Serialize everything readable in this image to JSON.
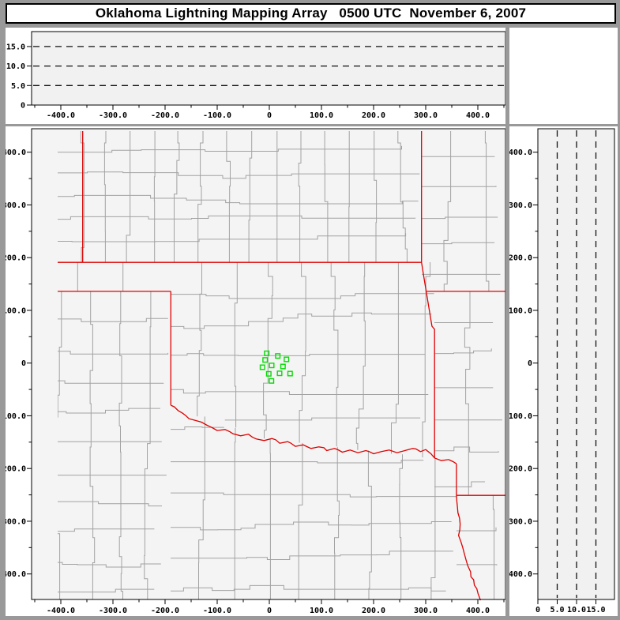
{
  "title_bar": {
    "text": "Oklahoma Lightning Mapping Array   0500 UTC  November 6, 2007"
  },
  "colors": {
    "frame_bg": "#999999",
    "panel_bg": "#ffffff",
    "plot_bg": "#f1f1f1",
    "map_bg": "#f4f4f4",
    "county_line": "#a2a2a2",
    "state_line": "#dd0000",
    "station_marker": "#00dd00",
    "axis": "#000000"
  },
  "chart_data": {
    "type": "scatter",
    "title": "Oklahoma Lightning Mapping Array",
    "timestamp": "0500 UTC  November 6, 2007",
    "layout": "three-panel lightning mapping display: altitude vs east-west (top), plan-view map (center), altitude vs north-south (right); distances in km from array center; no lightning source points plotted at this time",
    "panels": {
      "top_alt_vs_ew": {
        "x_range_km": [
          -456,
          453
        ],
        "alt_range_km": [
          0,
          18.8
        ],
        "alt_gridlines_km": [
          5,
          10,
          15
        ],
        "points": []
      },
      "map": {
        "x_range_km": [
          -456,
          453
        ],
        "y_range_km": [
          -448,
          445
        ],
        "points": []
      },
      "right_alt_vs_ns": {
        "alt_range_km": [
          0,
          19.8
        ],
        "y_range_km": [
          -448,
          445
        ],
        "alt_gridlines_km": [
          5,
          10,
          15
        ],
        "points": []
      }
    },
    "stations_km": [
      [
        -5.0,
        18.6
      ],
      [
        16.2,
        13.5
      ],
      [
        32.9,
        7.0
      ],
      [
        -8.0,
        6.0
      ],
      [
        4.5,
        -4.5
      ],
      [
        -13.2,
        -7.9
      ],
      [
        26.2,
        -6.4
      ],
      [
        -1.1,
        -20.4
      ],
      [
        19.7,
        -19.5
      ],
      [
        39.8,
        -19.9
      ],
      [
        4.1,
        -33.9
      ]
    ],
    "axes": {
      "km_ticks": [
        {
          "v": -400,
          "label": "-400.0"
        },
        {
          "v": -300,
          "label": "-300.0"
        },
        {
          "v": -200,
          "label": "-200.0"
        },
        {
          "v": -100,
          "label": "-100.0"
        },
        {
          "v": 0,
          "label": "0"
        },
        {
          "v": 100,
          "label": "100.0"
        },
        {
          "v": 200,
          "label": "200.0"
        },
        {
          "v": 300,
          "label": "300.0"
        },
        {
          "v": 400,
          "label": "400.0"
        }
      ],
      "km_minor_step": 50,
      "alt_ticks": [
        {
          "v": 0,
          "label": "0"
        },
        {
          "v": 5,
          "label": "5.0"
        },
        {
          "v": 10,
          "label": "10.0"
        },
        {
          "v": 15,
          "label": "15.0"
        }
      ]
    },
    "state_borders_km": {
      "kansas_south_37N": [
        [
          -456,
          191
        ],
        [
          292,
          191
        ]
      ],
      "colorado_kansas_102W": [
        [
          -358,
          445
        ],
        [
          -358,
          191
        ]
      ],
      "kansas_missouri": [
        [
          292,
          445
        ],
        [
          292,
          191
        ]
      ],
      "oklahoma_east_mo_ar": [
        [
          292,
          191
        ],
        [
          297,
          160
        ],
        [
          312,
          70
        ],
        [
          317,
          64
        ],
        [
          317,
          -180
        ]
      ],
      "panhandle_south_36_5N": [
        [
          -456,
          136
        ],
        [
          -189,
          136
        ]
      ],
      "missouri_arkansas_36_5N": [
        [
          302,
          136
        ],
        [
          453,
          136
        ]
      ],
      "oklahoma_west_100W": [
        [
          -189,
          136
        ],
        [
          -189,
          -80
        ]
      ],
      "red_river": [
        [
          -189,
          -80
        ],
        [
          -175,
          -90
        ],
        [
          -160,
          -100
        ],
        [
          -145,
          -108
        ],
        [
          -130,
          -112
        ],
        [
          -115,
          -120
        ],
        [
          -100,
          -128
        ],
        [
          -85,
          -126
        ],
        [
          -70,
          -134
        ],
        [
          -55,
          -138
        ],
        [
          -40,
          -135
        ],
        [
          -25,
          -144
        ],
        [
          -10,
          -147
        ],
        [
          5,
          -143
        ],
        [
          20,
          -152
        ],
        [
          35,
          -149
        ],
        [
          50,
          -158
        ],
        [
          65,
          -155
        ],
        [
          80,
          -162
        ],
        [
          95,
          -159
        ],
        [
          110,
          -166
        ],
        [
          125,
          -162
        ],
        [
          140,
          -169
        ],
        [
          155,
          -165
        ],
        [
          170,
          -170
        ],
        [
          185,
          -166
        ],
        [
          200,
          -172
        ],
        [
          215,
          -168
        ],
        [
          230,
          -165
        ],
        [
          245,
          -170
        ],
        [
          260,
          -166
        ],
        [
          275,
          -162
        ],
        [
          290,
          -168
        ],
        [
          300,
          -164
        ],
        [
          310,
          -172
        ],
        [
          317,
          -180
        ],
        [
          330,
          -185
        ],
        [
          344,
          -183
        ],
        [
          359,
          -191
        ]
      ],
      "arkansas_texas": [
        [
          359,
          -191
        ],
        [
          359,
          -251
        ]
      ],
      "arkansas_louisiana_33N": [
        [
          359,
          -251
        ],
        [
          453,
          -251
        ]
      ],
      "texas_louisiana": [
        [
          359,
          -251
        ],
        [
          361,
          -275
        ],
        [
          366,
          -305
        ],
        [
          363,
          -327
        ],
        [
          371,
          -350
        ],
        [
          377,
          -372
        ],
        [
          386,
          -396
        ],
        [
          392,
          -411
        ],
        [
          398,
          -428
        ],
        [
          403,
          -444
        ],
        [
          405,
          -450
        ]
      ]
    }
  }
}
